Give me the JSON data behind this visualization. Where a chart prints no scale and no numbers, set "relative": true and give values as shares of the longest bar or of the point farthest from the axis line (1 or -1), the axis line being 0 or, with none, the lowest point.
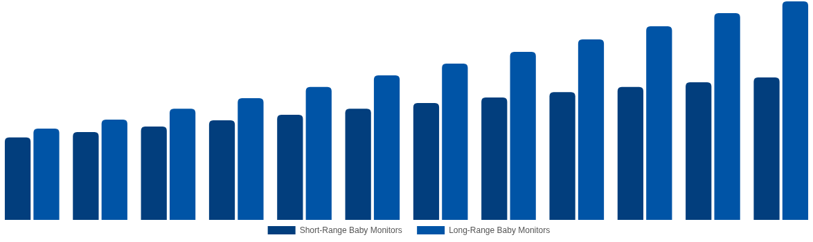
{
  "chart_data": {
    "type": "bar",
    "relative": true,
    "categories": [
      null,
      null,
      null,
      null,
      null,
      null,
      null,
      null,
      null,
      null,
      null,
      null
    ],
    "legend": "bottom",
    "series": [
      {
        "name": "Short-Range Baby Monitors",
        "color": "#023e7d",
        "values": [
          0.377,
          0.402,
          0.427,
          0.456,
          0.481,
          0.509,
          0.535,
          0.56,
          0.585,
          0.608,
          0.63,
          0.652
        ]
      },
      {
        "name": "Long-Range Baby Monitors",
        "color": "#0054a6",
        "values": [
          0.418,
          0.459,
          0.509,
          0.557,
          0.608,
          0.661,
          0.715,
          0.769,
          0.826,
          0.886,
          0.946,
          1
        ]
      }
    ]
  }
}
